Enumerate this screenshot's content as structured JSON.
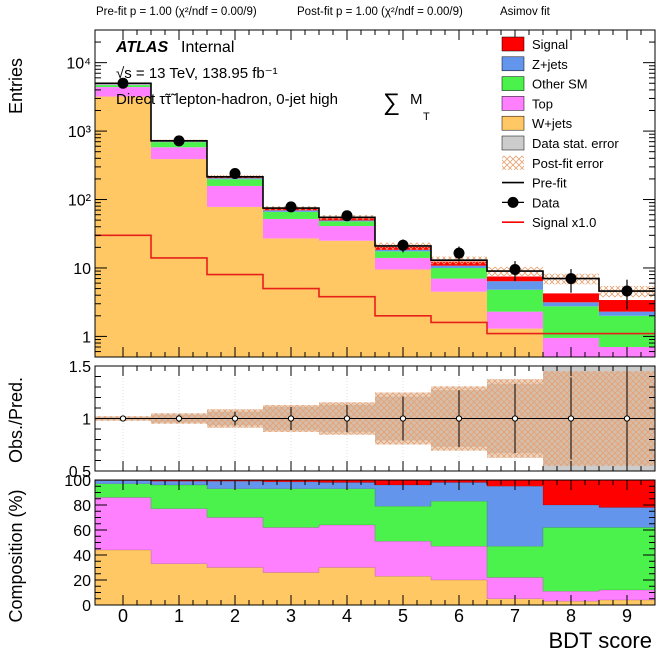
{
  "header": {
    "prefit": "Pre-fit   p = 1.00 (χ²/ndf = 0.00/9)",
    "postfit": "Post-fit p = 1.00 (χ²/ndf = 0.00/9)",
    "mode": "Asimov fit"
  },
  "labels": {
    "atlas": "ATLAS",
    "internal": "Internal",
    "energy": "√s = 13 TeV, 138.95 fb⁻¹",
    "region": "Direct τ̃τ̃ lepton-hadron, 0-jet high",
    "sum_symbol": "∑",
    "sum_m": "M",
    "sum_sub": "T"
  },
  "axes": {
    "top_ylabel": "Entries",
    "mid_ylabel": "Obs./Pred.",
    "bot_ylabel": "Composition (%)",
    "xlabel": "BDT score"
  },
  "legend": [
    {
      "label": "Signal",
      "type": "fill",
      "color": "#ff0000"
    },
    {
      "label": "Z+jets",
      "type": "fill",
      "color": "#6495ed"
    },
    {
      "label": "Other SM",
      "type": "fill",
      "color": "#4cf24c"
    },
    {
      "label": "Top",
      "type": "fill",
      "color": "#ff80ff"
    },
    {
      "label": "W+jets",
      "type": "fill",
      "color": "#ffc864"
    },
    {
      "label": "Data stat. error",
      "type": "fill",
      "color": "#cccccc"
    },
    {
      "label": "Post-fit error",
      "type": "hatch",
      "color": "#f0b080"
    },
    {
      "label": "Pre-fit",
      "type": "line",
      "color": "#000000"
    },
    {
      "label": "Data",
      "type": "marker",
      "color": "#000000"
    },
    {
      "label": "Signal x1.0",
      "type": "line",
      "color": "#ff0000"
    }
  ],
  "chart_data": [
    {
      "type": "bar",
      "stacked": true,
      "yscale": "log",
      "ylim": [
        0.5,
        30000
      ],
      "x": [
        0,
        1,
        2,
        3,
        4,
        5,
        6,
        7,
        8,
        9
      ],
      "xlim": [
        -0.5,
        9.5
      ],
      "ytick_labels": [
        "1",
        "10",
        "10²",
        "10³",
        "10⁴"
      ],
      "series": [
        {
          "name": "W+jets",
          "values": [
            3200,
            390,
            78,
            27,
            25,
            9.5,
            4.5,
            1.3,
            0.45,
            0.4
          ]
        },
        {
          "name": "Top",
          "values": [
            1200,
            190,
            80,
            25,
            16,
            4.5,
            2.5,
            1.0,
            0.5,
            0.3
          ]
        },
        {
          "name": "Other SM",
          "values": [
            300,
            110,
            40,
            14,
            7,
            3.5,
            3.0,
            2.5,
            1.8,
            1.3
          ]
        },
        {
          "name": "Z+jets",
          "values": [
            90,
            20,
            8,
            3.5,
            1.5,
            0.9,
            0.8,
            1.6,
            0.4,
            0.3
          ]
        },
        {
          "name": "Signal",
          "values": [
            30,
            14,
            8,
            5,
            3.8,
            2.0,
            1.6,
            1.1,
            1.1,
            1.1
          ]
        }
      ],
      "total": [
        5000,
        720,
        215,
        75,
        55,
        21,
        13,
        9.0,
        7.0,
        4.6
      ],
      "data": [
        5000,
        720,
        240,
        78,
        58,
        21.5,
        16.5,
        9.5,
        7.0,
        4.6
      ],
      "signal_line": [
        30,
        14,
        8,
        5,
        3.8,
        2.0,
        1.6,
        1.1,
        1.1,
        1.1
      ]
    },
    {
      "type": "scatter",
      "ylim": [
        0.5,
        1.5
      ],
      "x": [
        0,
        1,
        2,
        3,
        4,
        5,
        6,
        7,
        8,
        9
      ],
      "ratio": [
        1,
        1,
        1,
        1,
        1,
        1,
        1,
        1,
        1,
        1
      ],
      "ratio_err": [
        0.015,
        0.037,
        0.066,
        0.11,
        0.13,
        0.21,
        0.27,
        0.33,
        0.39,
        0.46
      ],
      "stat_band": [
        0.015,
        0.037,
        0.066,
        0.11,
        0.13,
        0.21,
        0.27,
        0.33,
        0.5,
        0.5
      ],
      "postfit_band": [
        0.01,
        0.02,
        0.035,
        0.04,
        0.05,
        0.08,
        0.09,
        0.11,
        0.13,
        0.14
      ],
      "ytick_labels": [
        "0.5",
        "1",
        "1.5"
      ]
    },
    {
      "type": "bar",
      "stacked": true,
      "ylim": [
        0,
        100
      ],
      "x": [
        0,
        1,
        2,
        3,
        4,
        5,
        6,
        7,
        8,
        9
      ],
      "ytick_labels": [
        "0",
        "20",
        "40",
        "60",
        "80",
        "100"
      ],
      "series": [
        {
          "name": "W+jets",
          "values": [
            44,
            33,
            30,
            26,
            30,
            23,
            20,
            5,
            3,
            4
          ]
        },
        {
          "name": "Top",
          "values": [
            42,
            44,
            40,
            36,
            34,
            28,
            27,
            17,
            8,
            8
          ]
        },
        {
          "name": "Other SM",
          "values": [
            11,
            19,
            23,
            31,
            29,
            28,
            36,
            25,
            51,
            50
          ]
        },
        {
          "name": "Z+jets",
          "values": [
            2.5,
            3,
            6,
            5.5,
            5,
            17,
            15,
            48,
            18,
            16
          ]
        },
        {
          "name": "Signal",
          "values": [
            0.5,
            1,
            1,
            1.5,
            2,
            4,
            2,
            5,
            20,
            22
          ]
        }
      ]
    }
  ]
}
